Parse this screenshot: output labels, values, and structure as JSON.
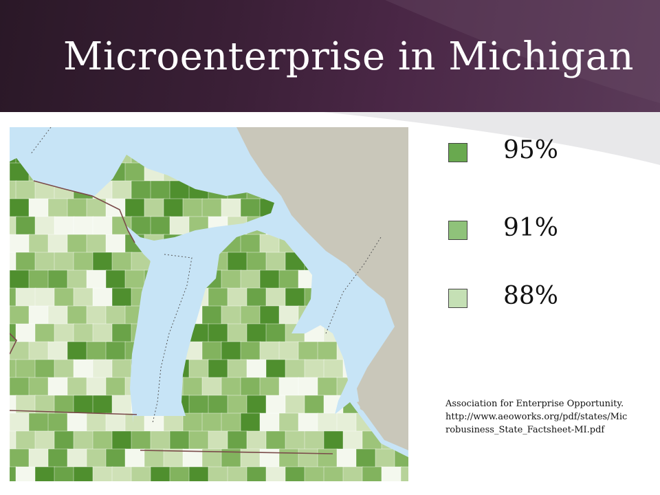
{
  "slide": {
    "title": "Microenterprise in Michigan"
  },
  "map": {
    "water_color": "#c7e4f6",
    "land_other_color": "#c9c7ba",
    "palette": [
      "#f4f8ee",
      "#e6efd8",
      "#cfe1b7",
      "#b7d399",
      "#9dc47a",
      "#82b35e",
      "#6aa348",
      "#4f8f2e"
    ]
  },
  "legend": {
    "items": [
      {
        "label": "95%",
        "color": "#69a94f"
      },
      {
        "label": "91%",
        "color": "#8fc27a"
      },
      {
        "label": "88%",
        "color": "#c5e0b5"
      }
    ]
  },
  "source": {
    "text": "Association for Enterprise Opportunity. http://www.aeoworks.org/pdf/states/Microbusiness_State_Factsheet-MI.pdf"
  }
}
